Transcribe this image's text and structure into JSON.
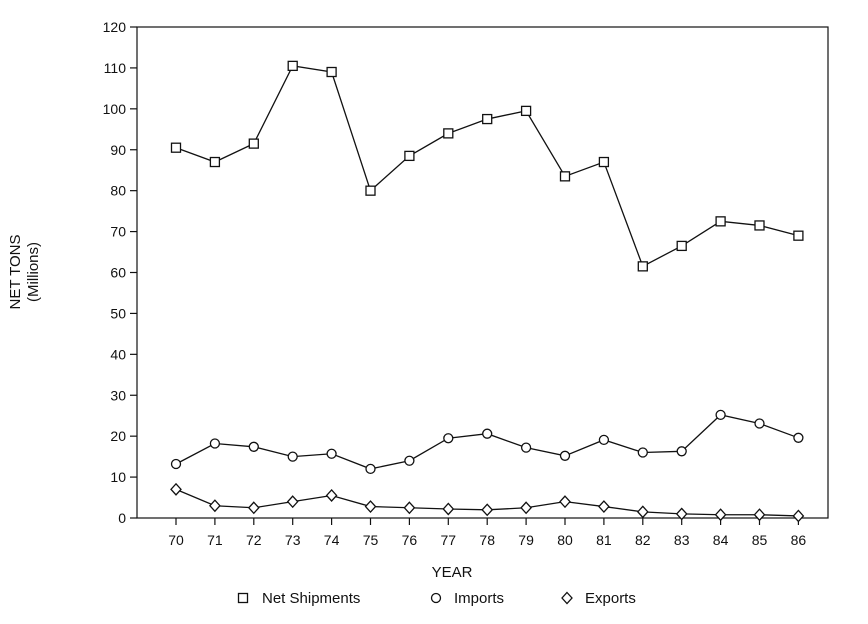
{
  "chart_data": {
    "type": "line",
    "title": "",
    "xlabel": "YEAR",
    "ylabel": "NET TONS",
    "ylabel_sub": "(Millions)",
    "categories": [
      "70",
      "71",
      "72",
      "73",
      "74",
      "75",
      "76",
      "77",
      "78",
      "79",
      "80",
      "81",
      "82",
      "83",
      "84",
      "85",
      "86"
    ],
    "ylim": [
      0,
      120
    ],
    "yticks": [
      0,
      10,
      20,
      30,
      40,
      50,
      60,
      70,
      80,
      90,
      100,
      110,
      120
    ],
    "grid": false,
    "legend_position": "bottom",
    "series": [
      {
        "name": "Net Shipments",
        "marker": "square",
        "values": [
          90.5,
          87,
          91.5,
          110.5,
          109,
          80,
          88.5,
          94,
          97.5,
          99.5,
          83.5,
          87,
          61.5,
          66.5,
          72.5,
          71.5,
          69
        ]
      },
      {
        "name": "Imports",
        "marker": "circle",
        "values": [
          13.2,
          18.2,
          17.4,
          15,
          15.7,
          12,
          14,
          19.5,
          20.6,
          17.2,
          15.2,
          19.1,
          16,
          16.3,
          25.2,
          23.1,
          19.6
        ]
      },
      {
        "name": "Exports",
        "marker": "diamond",
        "values": [
          7,
          3,
          2.5,
          4,
          5.5,
          2.8,
          2.5,
          2.2,
          2,
          2.5,
          4,
          2.8,
          1.5,
          1,
          0.8,
          0.8,
          0.5
        ]
      }
    ]
  }
}
